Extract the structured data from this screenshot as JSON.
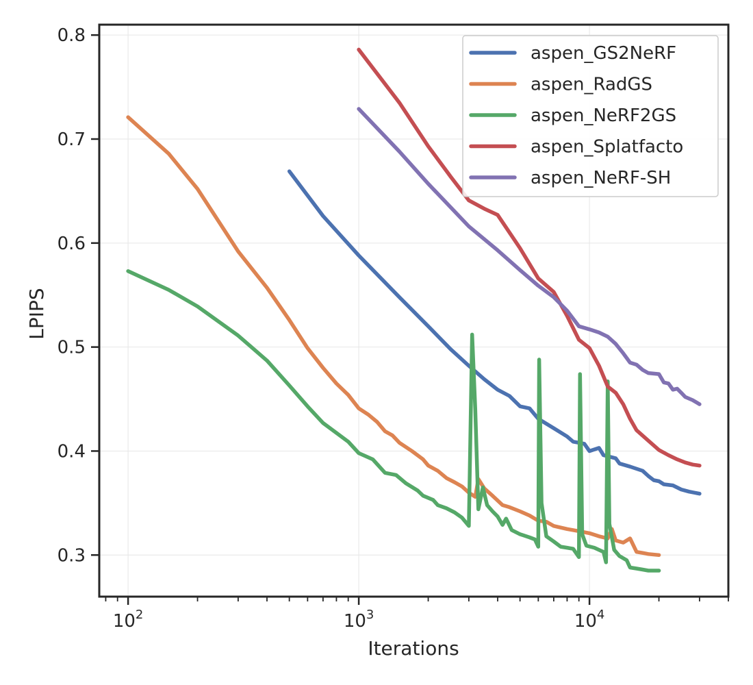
{
  "chart_data": {
    "type": "line",
    "title": "",
    "xlabel": "Iterations",
    "ylabel": "LPIPS",
    "xscale": "log",
    "xlim": [
      75,
      40000
    ],
    "ylim": [
      0.26,
      0.81
    ],
    "grid": true,
    "legend_position": "top-right",
    "y_ticks": [
      {
        "value": 0.3,
        "label": "0.3"
      },
      {
        "value": 0.4,
        "label": "0.4"
      },
      {
        "value": 0.5,
        "label": "0.5"
      },
      {
        "value": 0.6,
        "label": "0.6"
      },
      {
        "value": 0.7,
        "label": "0.7"
      },
      {
        "value": 0.8,
        "label": "0.8"
      }
    ],
    "x_ticks": [
      {
        "value": 100,
        "base": "10",
        "exp": "2"
      },
      {
        "value": 1000,
        "base": "10",
        "exp": "3"
      },
      {
        "value": 10000,
        "base": "10",
        "exp": "4"
      }
    ],
    "series": [
      {
        "name": "aspen_GS2NeRF",
        "color": "#4c72b0",
        "points": [
          [
            500,
            0.669
          ],
          [
            700,
            0.626
          ],
          [
            1000,
            0.588
          ],
          [
            1500,
            0.548
          ],
          [
            2000,
            0.52
          ],
          [
            2500,
            0.498
          ],
          [
            3000,
            0.482
          ],
          [
            3500,
            0.469
          ],
          [
            4000,
            0.459
          ],
          [
            4500,
            0.453
          ],
          [
            5000,
            0.443
          ],
          [
            5500,
            0.441
          ],
          [
            6000,
            0.431
          ],
          [
            7000,
            0.422
          ],
          [
            8000,
            0.414
          ],
          [
            8500,
            0.409
          ],
          [
            9500,
            0.407
          ],
          [
            10000,
            0.4
          ],
          [
            11000,
            0.403
          ],
          [
            11500,
            0.396
          ],
          [
            13000,
            0.393
          ],
          [
            13500,
            0.388
          ],
          [
            15000,
            0.385
          ],
          [
            17000,
            0.381
          ],
          [
            18000,
            0.376
          ],
          [
            19000,
            0.372
          ],
          [
            20000,
            0.371
          ],
          [
            21000,
            0.368
          ],
          [
            23000,
            0.367
          ],
          [
            25000,
            0.363
          ],
          [
            27000,
            0.361
          ],
          [
            30000,
            0.359
          ]
        ]
      },
      {
        "name": "aspen_RadGS",
        "color": "#dd8452",
        "points": [
          [
            100,
            0.721
          ],
          [
            150,
            0.686
          ],
          [
            200,
            0.652
          ],
          [
            300,
            0.592
          ],
          [
            400,
            0.557
          ],
          [
            500,
            0.526
          ],
          [
            600,
            0.499
          ],
          [
            700,
            0.48
          ],
          [
            800,
            0.465
          ],
          [
            900,
            0.454
          ],
          [
            1000,
            0.441
          ],
          [
            1100,
            0.435
          ],
          [
            1200,
            0.428
          ],
          [
            1300,
            0.419
          ],
          [
            1400,
            0.415
          ],
          [
            1500,
            0.408
          ],
          [
            1700,
            0.4
          ],
          [
            1900,
            0.392
          ],
          [
            2000,
            0.386
          ],
          [
            2200,
            0.381
          ],
          [
            2400,
            0.374
          ],
          [
            2600,
            0.37
          ],
          [
            2800,
            0.366
          ],
          [
            3000,
            0.36
          ],
          [
            3200,
            0.356
          ],
          [
            3300,
            0.373
          ],
          [
            3500,
            0.364
          ],
          [
            3800,
            0.357
          ],
          [
            4200,
            0.348
          ],
          [
            4500,
            0.346
          ],
          [
            5000,
            0.342
          ],
          [
            5500,
            0.338
          ],
          [
            6000,
            0.333
          ],
          [
            6500,
            0.332
          ],
          [
            7000,
            0.328
          ],
          [
            8000,
            0.325
          ],
          [
            9000,
            0.323
          ],
          [
            10000,
            0.321
          ],
          [
            11000,
            0.318
          ],
          [
            12000,
            0.316
          ],
          [
            12500,
            0.325
          ],
          [
            13000,
            0.314
          ],
          [
            14000,
            0.312
          ],
          [
            15000,
            0.316
          ],
          [
            16000,
            0.303
          ],
          [
            17000,
            0.302
          ],
          [
            18000,
            0.301
          ],
          [
            20000,
            0.3
          ]
        ]
      },
      {
        "name": "aspen_NeRF2GS",
        "color": "#55a868",
        "points": [
          [
            100,
            0.573
          ],
          [
            150,
            0.555
          ],
          [
            200,
            0.539
          ],
          [
            300,
            0.511
          ],
          [
            400,
            0.487
          ],
          [
            500,
            0.463
          ],
          [
            600,
            0.443
          ],
          [
            700,
            0.427
          ],
          [
            900,
            0.409
          ],
          [
            1000,
            0.398
          ],
          [
            1150,
            0.392
          ],
          [
            1300,
            0.379
          ],
          [
            1450,
            0.377
          ],
          [
            1600,
            0.369
          ],
          [
            1800,
            0.362
          ],
          [
            1900,
            0.357
          ],
          [
            2100,
            0.353
          ],
          [
            2200,
            0.348
          ],
          [
            2400,
            0.345
          ],
          [
            2600,
            0.341
          ],
          [
            2800,
            0.336
          ],
          [
            3000,
            0.328
          ],
          [
            3100,
            0.512
          ],
          [
            3200,
            0.44
          ],
          [
            3300,
            0.344
          ],
          [
            3450,
            0.365
          ],
          [
            3600,
            0.348
          ],
          [
            3800,
            0.342
          ],
          [
            4000,
            0.337
          ],
          [
            4200,
            0.329
          ],
          [
            4350,
            0.335
          ],
          [
            4600,
            0.324
          ],
          [
            5000,
            0.32
          ],
          [
            5500,
            0.317
          ],
          [
            5800,
            0.315
          ],
          [
            6000,
            0.308
          ],
          [
            6050,
            0.488
          ],
          [
            6200,
            0.35
          ],
          [
            6500,
            0.318
          ],
          [
            7000,
            0.313
          ],
          [
            7500,
            0.308
          ],
          [
            8000,
            0.307
          ],
          [
            8500,
            0.306
          ],
          [
            9000,
            0.298
          ],
          [
            9100,
            0.474
          ],
          [
            9300,
            0.32
          ],
          [
            9700,
            0.309
          ],
          [
            10500,
            0.307
          ],
          [
            11500,
            0.303
          ],
          [
            11800,
            0.293
          ],
          [
            12000,
            0.467
          ],
          [
            12200,
            0.33
          ],
          [
            12800,
            0.305
          ],
          [
            13500,
            0.299
          ],
          [
            14500,
            0.295
          ],
          [
            15000,
            0.288
          ],
          [
            16000,
            0.287
          ],
          [
            17000,
            0.286
          ],
          [
            18000,
            0.285
          ],
          [
            20000,
            0.285
          ]
        ]
      },
      {
        "name": "aspen_Splatfacto",
        "color": "#c44e52",
        "points": [
          [
            1000,
            0.786
          ],
          [
            1500,
            0.735
          ],
          [
            2000,
            0.693
          ],
          [
            2500,
            0.664
          ],
          [
            3000,
            0.641
          ],
          [
            3500,
            0.633
          ],
          [
            4000,
            0.627
          ],
          [
            5000,
            0.595
          ],
          [
            6000,
            0.566
          ],
          [
            7000,
            0.553
          ],
          [
            8000,
            0.53
          ],
          [
            9000,
            0.507
          ],
          [
            10000,
            0.499
          ],
          [
            11000,
            0.482
          ],
          [
            12000,
            0.462
          ],
          [
            13000,
            0.456
          ],
          [
            14000,
            0.445
          ],
          [
            15000,
            0.431
          ],
          [
            16000,
            0.42
          ],
          [
            18000,
            0.41
          ],
          [
            20000,
            0.401
          ],
          [
            22000,
            0.396
          ],
          [
            24000,
            0.392
          ],
          [
            26000,
            0.389
          ],
          [
            28000,
            0.387
          ],
          [
            30000,
            0.386
          ]
        ]
      },
      {
        "name": "aspen_NeRF-SH",
        "color": "#8172b2",
        "points": [
          [
            1000,
            0.729
          ],
          [
            1500,
            0.688
          ],
          [
            2000,
            0.657
          ],
          [
            3000,
            0.616
          ],
          [
            4000,
            0.593
          ],
          [
            5000,
            0.574
          ],
          [
            6000,
            0.559
          ],
          [
            7000,
            0.548
          ],
          [
            8000,
            0.535
          ],
          [
            9000,
            0.52
          ],
          [
            10000,
            0.517
          ],
          [
            11000,
            0.514
          ],
          [
            12000,
            0.51
          ],
          [
            13000,
            0.503
          ],
          [
            14000,
            0.494
          ],
          [
            15000,
            0.485
          ],
          [
            16000,
            0.483
          ],
          [
            17000,
            0.478
          ],
          [
            18000,
            0.475
          ],
          [
            20000,
            0.474
          ],
          [
            21000,
            0.466
          ],
          [
            22000,
            0.465
          ],
          [
            23000,
            0.459
          ],
          [
            24000,
            0.46
          ],
          [
            25000,
            0.456
          ],
          [
            26000,
            0.452
          ],
          [
            28000,
            0.449
          ],
          [
            30000,
            0.445
          ]
        ]
      }
    ]
  }
}
